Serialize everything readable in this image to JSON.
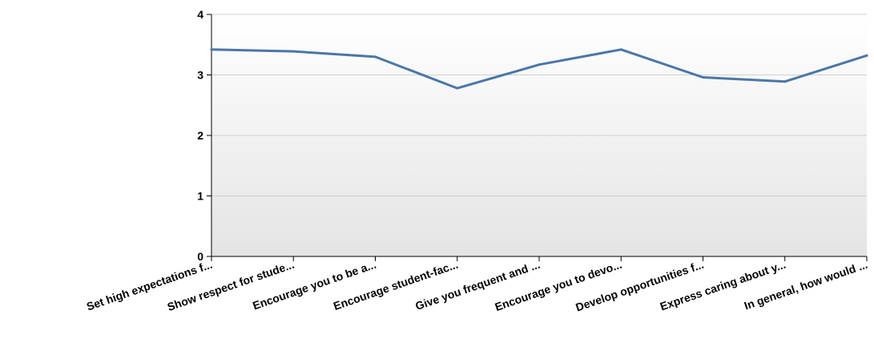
{
  "chart_data": {
    "type": "line",
    "categories": [
      "Set high expectations f...",
      "Show respect for stude...",
      "Encourage you to be a...",
      "Encourage student-fac...",
      "Give you frequent and ...",
      "Encourage you to devo...",
      "Develop opportunities f...",
      "Express caring about y...",
      "In general, how would ..."
    ],
    "series": [
      {
        "values": [
          3.42,
          3.39,
          3.3,
          2.78,
          3.17,
          3.42,
          2.96,
          2.89,
          3.32
        ]
      }
    ],
    "ylim": [
      0,
      4
    ],
    "yticks": [
      "0",
      "1",
      "2",
      "3",
      "4"
    ],
    "grid": true,
    "line_color": "#4a76a8",
    "title": "",
    "xlabel": "",
    "ylabel": ""
  }
}
